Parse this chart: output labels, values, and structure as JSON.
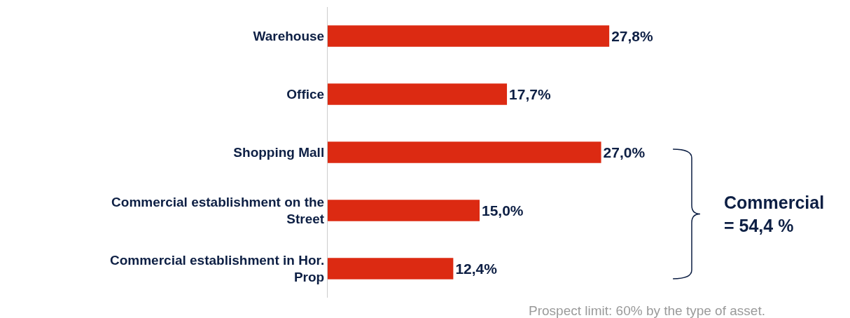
{
  "chart_data": {
    "type": "bar",
    "orientation": "horizontal",
    "categories": [
      "Warehouse",
      "Office",
      "Shopping Mall",
      "Commercial establishment on the Street",
      "Commercial establishment in Hor. Prop"
    ],
    "values": [
      27.8,
      17.7,
      27.0,
      15.0,
      12.4
    ],
    "value_labels": [
      "27,8%",
      "17,7%",
      "27,0%",
      "15,0%",
      "12,4%"
    ],
    "color": "#dc2a12",
    "annotations": [
      "Commercial\n= 54,4 %",
      "Prospect limit: 60% by the type of asset."
    ],
    "legend": false
  }
}
